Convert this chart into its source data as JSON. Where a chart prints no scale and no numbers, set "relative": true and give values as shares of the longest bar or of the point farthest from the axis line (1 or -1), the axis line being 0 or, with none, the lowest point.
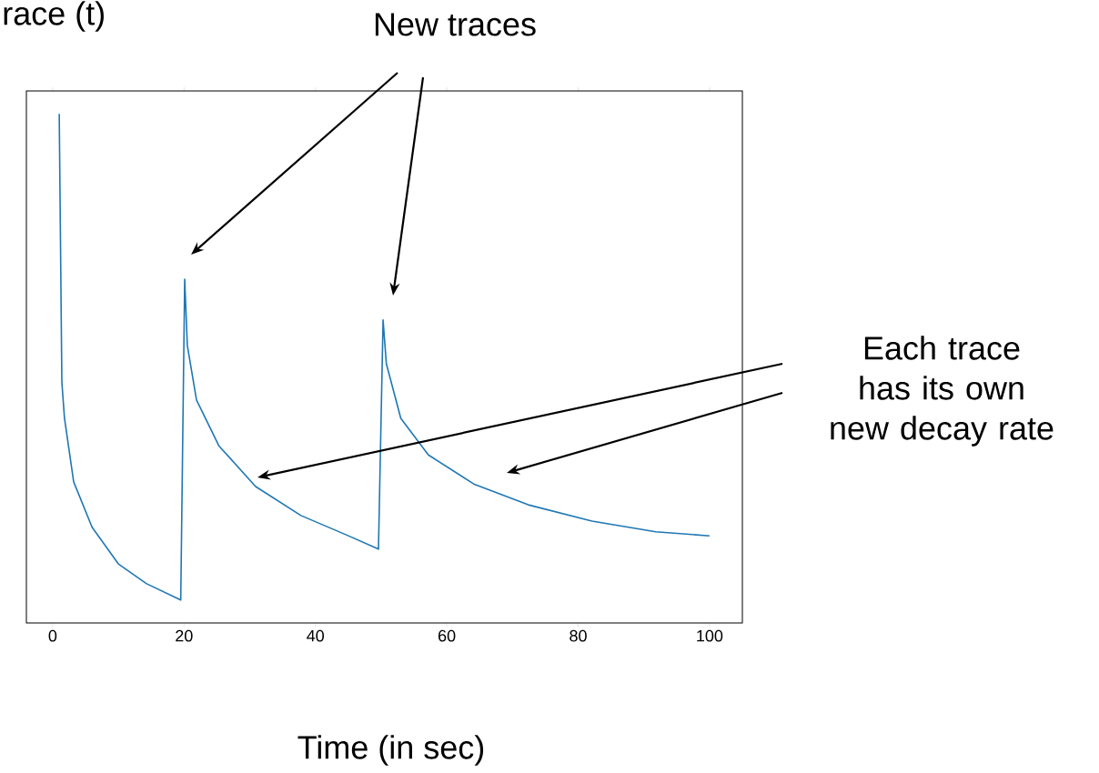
{
  "chart_data": {
    "type": "line",
    "relative": true,
    "ylabel": "race (t)",
    "xlabel": "Time (in sec)",
    "xlim": [
      -4,
      105
    ],
    "xticks": [
      0,
      20,
      40,
      60,
      80,
      100
    ],
    "tick_labels": "x",
    "marker": "none",
    "line_style": "solid",
    "annotations": [
      "New traces",
      "Each trace has its own new decay rate"
    ],
    "series": [
      {
        "color": "#1f77b4",
        "x": [
          1,
          1.4,
          1.8,
          3.2,
          6,
          10,
          14.3,
          19.5,
          20.1,
          20.5,
          21.9,
          25.3,
          30.9,
          37.8,
          44.7,
          49.6,
          50.3,
          50.8,
          53,
          57.2,
          64.1,
          72.4,
          82.1,
          91.8,
          100
        ],
        "values": [
          1.0,
          0.473,
          0.402,
          0.277,
          0.188,
          0.116,
          0.077,
          0.045,
          0.675,
          0.545,
          0.438,
          0.348,
          0.268,
          0.211,
          0.173,
          0.145,
          0.595,
          0.509,
          0.402,
          0.33,
          0.273,
          0.232,
          0.2,
          0.179,
          0.171
        ]
      }
    ]
  }
}
